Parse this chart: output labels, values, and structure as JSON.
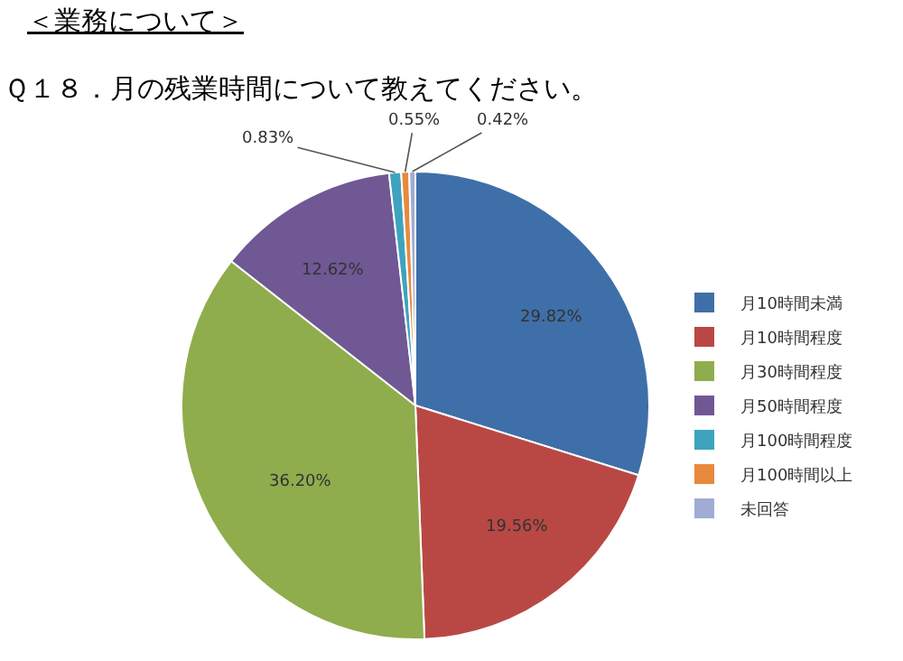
{
  "chart_data": {
    "type": "pie",
    "title": "＜業務について＞",
    "subtitle": "Ｑ１８．月の残業時間について教えてください。",
    "categories": [
      "月10時間未満",
      "月10時間程度",
      "月30時間程度",
      "月50時間程度",
      "月100時間程度",
      "月100時間以上",
      "未回答"
    ],
    "values": [
      29.82,
      19.56,
      36.2,
      12.62,
      0.83,
      0.55,
      0.42
    ],
    "value_labels": [
      "29.82%",
      "19.56%",
      "36.20%",
      "12.62%",
      "0.83%",
      "0.55%",
      "0.42%"
    ],
    "colors": [
      "#3f6fa8",
      "#b94844",
      "#8fad4c",
      "#6f5894",
      "#3ea3bf",
      "#e8893c",
      "#a0acd4"
    ],
    "legend": "right"
  }
}
